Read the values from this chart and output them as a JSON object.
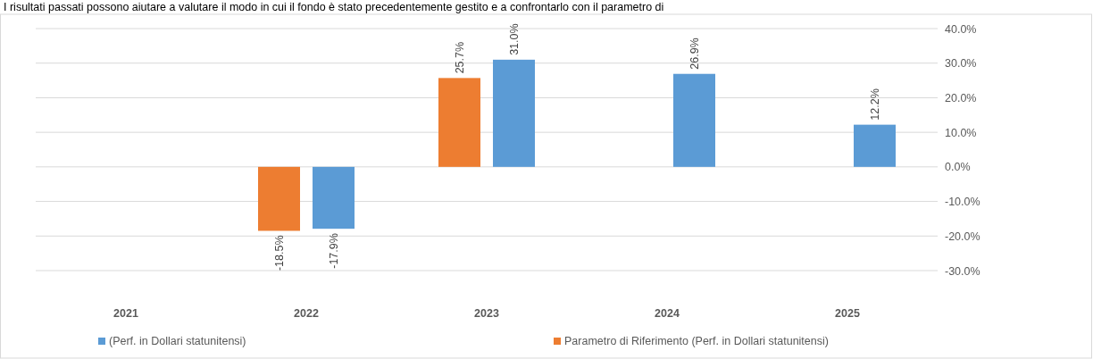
{
  "chart_data": {
    "type": "bar",
    "title": "I risultati passati possono aiutare a valutare il modo in cui il fondo è stato precedentemente gestito e a confrontarlo con il parametro di",
    "categories": [
      "2021",
      "2022",
      "2023",
      "2024",
      "2025"
    ],
    "series": [
      {
        "name": "(Perf. in Dollari statunitensi)",
        "color": "#5b9bd5",
        "values": [
          null,
          -17.9,
          31.0,
          26.9,
          12.2
        ],
        "value_labels": [
          null,
          "-17.9%",
          "31.0%",
          "26.9%",
          "12.2%"
        ]
      },
      {
        "name": "Parametro di Riferimento (Perf. in Dollari statunitensi)",
        "color": "#ed7d31",
        "values": [
          null,
          -18.5,
          25.7,
          null,
          null
        ],
        "value_labels": [
          null,
          "-18.5%",
          "25.7%",
          null,
          null
        ]
      }
    ],
    "ylim": [
      -30,
      40
    ],
    "yticks": [
      {
        "value": -30,
        "label": "-30.0%"
      },
      {
        "value": -20,
        "label": "-20.0%"
      },
      {
        "value": -10,
        "label": "-10.0%"
      },
      {
        "value": 0,
        "label": "0.0%"
      },
      {
        "value": 10,
        "label": "10.0%"
      },
      {
        "value": 20,
        "label": "20.0%"
      },
      {
        "value": 30,
        "label": "30.0%"
      },
      {
        "value": 40,
        "label": "40.0%"
      }
    ],
    "grid": "y",
    "legend": "bottom"
  }
}
